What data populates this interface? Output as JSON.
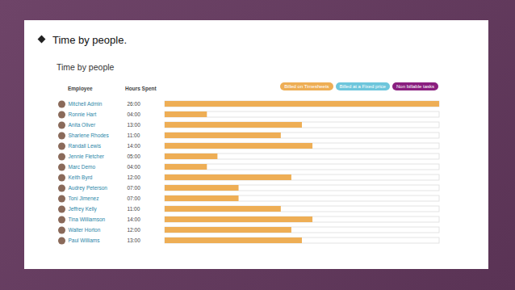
{
  "heading": "Time by people.",
  "chart_data": {
    "type": "bar",
    "orientation": "horizontal",
    "stacked": true,
    "title": "Time by people",
    "ylabel": "Employee",
    "data_labels_title": "Hours Spent",
    "data_labels": true,
    "tick_labels": false,
    "legend": "top-right",
    "categories": [
      "Mitchell Admin",
      "Ronnie Hart",
      "Anita Oliver",
      "Sharlene Rhodes",
      "Randall Lewis",
      "Jennie Fletcher",
      "Marc Demo",
      "Keith Byrd",
      "Audrey Peterson",
      "Toni Jimenez",
      "Jeffrey Kelly",
      "Tina Williamson",
      "Walter Horton",
      "Paul Williams"
    ],
    "xlim": [
      0,
      26
    ],
    "series": [
      {
        "name": "Billed on Timesheets",
        "color": "#eeae55",
        "values": [
          26,
          4,
          13,
          11,
          14,
          5,
          4,
          12,
          7,
          7,
          11,
          14,
          12,
          13
        ],
        "value_labels": [
          "26:00",
          "04:00",
          "13:00",
          "11:00",
          "14:00",
          "05:00",
          "04:00",
          "12:00",
          "07:00",
          "07:00",
          "11:00",
          "14:00",
          "12:00",
          "13:00"
        ]
      },
      {
        "name": "Billed at a Fixed price",
        "color": "#6ec6dc",
        "values": [
          0,
          0,
          0,
          0,
          0,
          0,
          0,
          0,
          0,
          0,
          0,
          0,
          0,
          0
        ]
      },
      {
        "name": "Non billable tasks",
        "color": "#8a1f7f",
        "values": [
          0,
          0,
          0,
          0,
          0,
          0,
          0,
          0,
          0,
          0,
          0,
          0,
          0,
          0
        ]
      }
    ]
  }
}
